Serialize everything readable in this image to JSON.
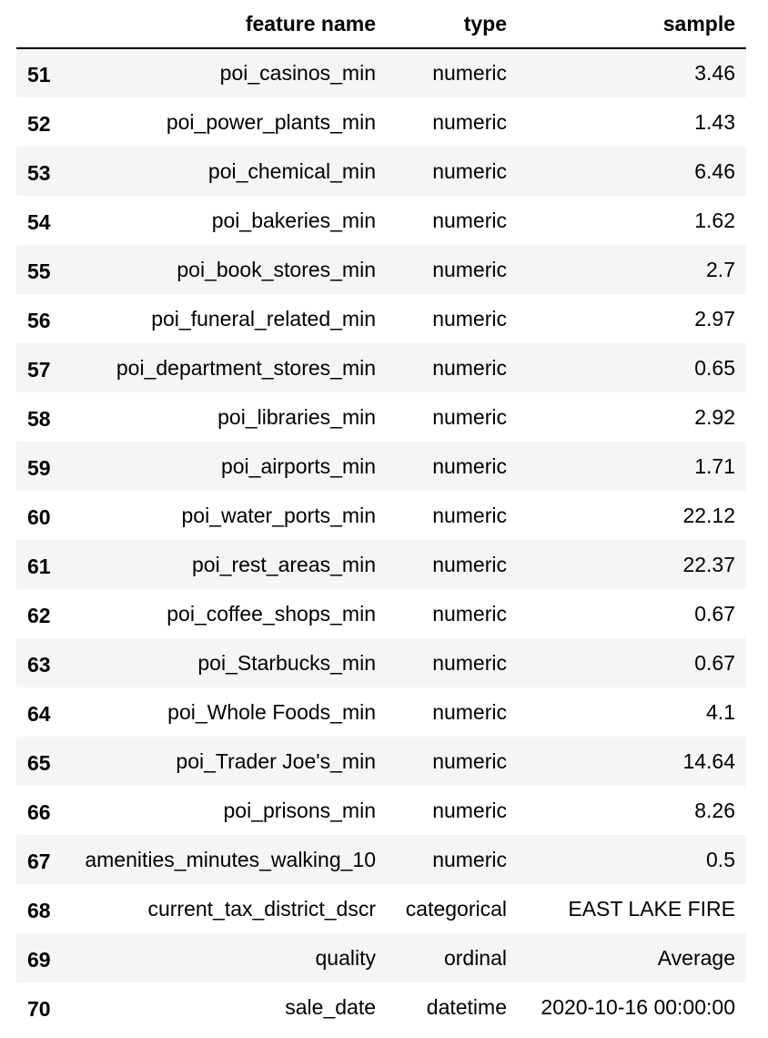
{
  "columns": {
    "index": "",
    "feature_name": "feature name",
    "type": "type",
    "sample": "sample"
  },
  "rows": [
    {
      "index": "51",
      "feature_name": "poi_casinos_min",
      "type": "numeric",
      "sample": "3.46"
    },
    {
      "index": "52",
      "feature_name": "poi_power_plants_min",
      "type": "numeric",
      "sample": "1.43"
    },
    {
      "index": "53",
      "feature_name": "poi_chemical_min",
      "type": "numeric",
      "sample": "6.46"
    },
    {
      "index": "54",
      "feature_name": "poi_bakeries_min",
      "type": "numeric",
      "sample": "1.62"
    },
    {
      "index": "55",
      "feature_name": "poi_book_stores_min",
      "type": "numeric",
      "sample": "2.7"
    },
    {
      "index": "56",
      "feature_name": "poi_funeral_related_min",
      "type": "numeric",
      "sample": "2.97"
    },
    {
      "index": "57",
      "feature_name": "poi_department_stores_min",
      "type": "numeric",
      "sample": "0.65"
    },
    {
      "index": "58",
      "feature_name": "poi_libraries_min",
      "type": "numeric",
      "sample": "2.92"
    },
    {
      "index": "59",
      "feature_name": "poi_airports_min",
      "type": "numeric",
      "sample": "1.71"
    },
    {
      "index": "60",
      "feature_name": "poi_water_ports_min",
      "type": "numeric",
      "sample": "22.12"
    },
    {
      "index": "61",
      "feature_name": "poi_rest_areas_min",
      "type": "numeric",
      "sample": "22.37"
    },
    {
      "index": "62",
      "feature_name": "poi_coffee_shops_min",
      "type": "numeric",
      "sample": "0.67"
    },
    {
      "index": "63",
      "feature_name": "poi_Starbucks_min",
      "type": "numeric",
      "sample": "0.67"
    },
    {
      "index": "64",
      "feature_name": "poi_Whole Foods_min",
      "type": "numeric",
      "sample": "4.1"
    },
    {
      "index": "65",
      "feature_name": "poi_Trader Joe's_min",
      "type": "numeric",
      "sample": "14.64"
    },
    {
      "index": "66",
      "feature_name": "poi_prisons_min",
      "type": "numeric",
      "sample": "8.26"
    },
    {
      "index": "67",
      "feature_name": "amenities_minutes_walking_10",
      "type": "numeric",
      "sample": "0.5"
    },
    {
      "index": "68",
      "feature_name": "current_tax_district_dscr",
      "type": "categorical",
      "sample": "EAST LAKE FIRE"
    },
    {
      "index": "69",
      "feature_name": "quality",
      "type": "ordinal",
      "sample": "Average"
    },
    {
      "index": "70",
      "feature_name": "sale_date",
      "type": "datetime",
      "sample": "2020-10-16 00:00:00"
    }
  ],
  "colors": {
    "stripe": "#f5f5f5",
    "background": "#ffffff",
    "text": "#000000"
  }
}
